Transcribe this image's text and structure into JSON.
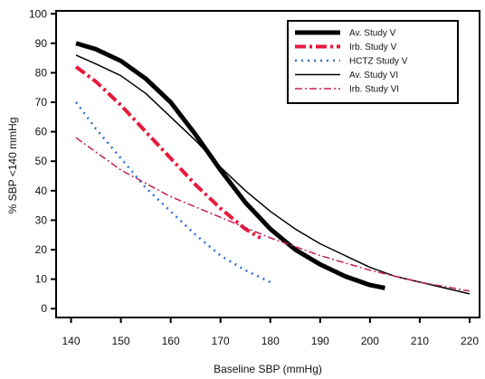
{
  "chart_data": {
    "type": "line",
    "title": "",
    "xlabel": "Baseline SBP (mmHg)",
    "ylabel": "% SBP <140 mmHg",
    "xlim": [
      137,
      222
    ],
    "ylim": [
      -3,
      101
    ],
    "x_ticks": [
      140,
      150,
      160,
      170,
      180,
      190,
      200,
      210,
      220
    ],
    "y_ticks": [
      0,
      10,
      20,
      30,
      40,
      50,
      60,
      70,
      80,
      90,
      100
    ],
    "grid": false,
    "legend_position": "top-right",
    "series": [
      {
        "name": "Av. Study V",
        "color": "#000000",
        "style": "solid-thick",
        "points": [
          [
            141,
            90
          ],
          [
            145,
            88
          ],
          [
            150,
            84
          ],
          [
            155,
            78
          ],
          [
            160,
            70
          ],
          [
            165,
            59
          ],
          [
            170,
            47
          ],
          [
            175,
            36
          ],
          [
            180,
            27
          ],
          [
            185,
            20
          ],
          [
            190,
            15
          ],
          [
            195,
            11
          ],
          [
            200,
            8
          ],
          [
            203,
            7
          ]
        ]
      },
      {
        "name": "Irb. Study V",
        "color": "#e8193c",
        "style": "dash-dot-thick",
        "points": [
          [
            141,
            82
          ],
          [
            145,
            77
          ],
          [
            150,
            69
          ],
          [
            155,
            60
          ],
          [
            160,
            51
          ],
          [
            165,
            42
          ],
          [
            170,
            34
          ],
          [
            175,
            27
          ],
          [
            178,
            24
          ]
        ]
      },
      {
        "name": "HCTZ Study V",
        "color": "#2e6fd6",
        "style": "dotted",
        "points": [
          [
            141,
            70
          ],
          [
            145,
            61
          ],
          [
            150,
            51
          ],
          [
            155,
            41
          ],
          [
            160,
            33
          ],
          [
            165,
            25
          ],
          [
            170,
            18
          ],
          [
            175,
            13
          ],
          [
            180,
            9
          ]
        ]
      },
      {
        "name": "Av. Study VI",
        "color": "#000000",
        "style": "solid-thin",
        "points": [
          [
            141,
            86
          ],
          [
            145,
            83
          ],
          [
            150,
            79
          ],
          [
            155,
            73
          ],
          [
            160,
            65
          ],
          [
            165,
            57
          ],
          [
            170,
            48
          ],
          [
            175,
            40
          ],
          [
            180,
            33
          ],
          [
            185,
            27
          ],
          [
            190,
            22
          ],
          [
            195,
            18
          ],
          [
            200,
            14
          ],
          [
            205,
            11
          ],
          [
            210,
            9
          ],
          [
            215,
            7
          ],
          [
            220,
            5
          ]
        ]
      },
      {
        "name": "Irb. Study VI",
        "color": "#c41e5a",
        "style": "dash-dot-thin",
        "points": [
          [
            141,
            58
          ],
          [
            150,
            47
          ],
          [
            160,
            38
          ],
          [
            170,
            31
          ],
          [
            180,
            24
          ],
          [
            190,
            18
          ],
          [
            200,
            13
          ],
          [
            210,
            9
          ],
          [
            220,
            6
          ]
        ]
      }
    ]
  }
}
